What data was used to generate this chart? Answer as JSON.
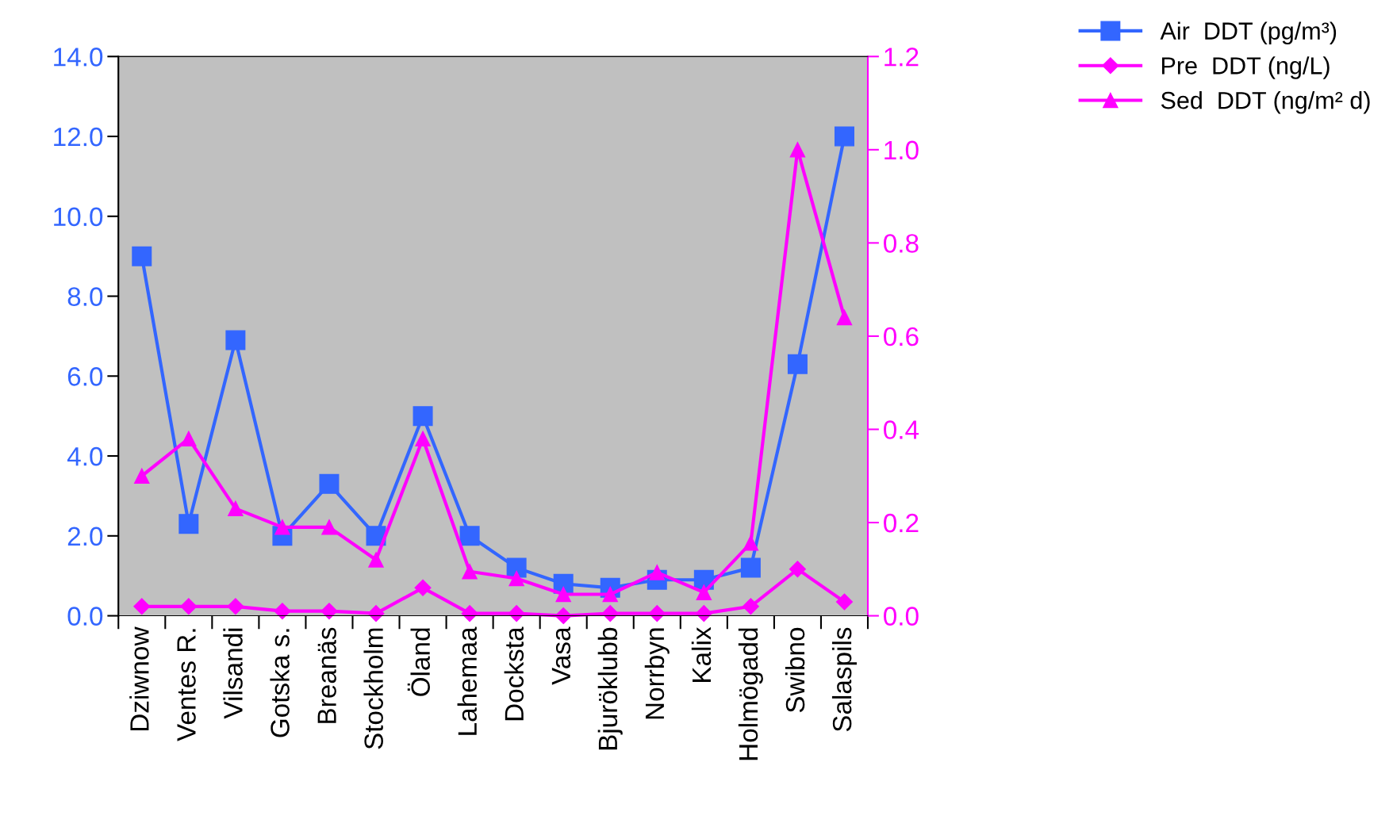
{
  "chart_data": {
    "type": "line",
    "categories": [
      "Dziwnow",
      "Ventes R.",
      "Vilsandi",
      "Gotska s.",
      "Breanäs",
      "Stockholm",
      "Öland",
      "Lahemaa",
      "Docksta",
      "Vasa",
      "Bjuröklubb",
      "Norrbyn",
      "Kalix",
      "Holmögadd",
      "Swibno",
      "Salaspils"
    ],
    "series": [
      {
        "name": "Air  DDT (pg/m³)",
        "color": "#3366ff",
        "marker": "square",
        "axis": "y",
        "values": [
          9.0,
          2.3,
          6.9,
          2.0,
          3.3,
          2.0,
          5.0,
          2.0,
          1.2,
          0.8,
          0.7,
          0.9,
          0.9,
          1.2,
          6.3,
          12.0
        ]
      },
      {
        "name": "Pre  DDT (ng/L)",
        "color": "#ff00ff",
        "marker": "diamond",
        "axis": "y2",
        "values": [
          0.02,
          0.02,
          0.02,
          0.01,
          0.01,
          0.005,
          0.06,
          0.005,
          0.005,
          0.0,
          0.005,
          0.005,
          0.005,
          0.02,
          0.1,
          0.03
        ]
      },
      {
        "name": "Sed  DDT (ng/m² d)",
        "color": "#ff00ff",
        "marker": "triangle",
        "axis": "y2",
        "values": [
          0.3,
          0.38,
          0.23,
          0.19,
          0.19,
          0.12,
          0.38,
          0.095,
          0.08,
          0.046,
          0.046,
          0.093,
          0.05,
          0.156,
          1.0,
          0.64
        ]
      }
    ],
    "ylim": [
      0,
      14
    ],
    "yticks": [
      {
        "value": 0,
        "label": "0.0"
      },
      {
        "value": 2,
        "label": "2.0"
      },
      {
        "value": 4,
        "label": "4.0"
      },
      {
        "value": 6,
        "label": "6.0"
      },
      {
        "value": 8,
        "label": "8.0"
      },
      {
        "value": 10,
        "label": "10.0"
      },
      {
        "value": 12,
        "label": "12.0"
      },
      {
        "value": 14,
        "label": "14.0"
      }
    ],
    "y2lim": [
      0,
      1.2
    ],
    "y2ticks": [
      {
        "value": 0,
        "label": "0.0"
      },
      {
        "value": 0.2,
        "label": "0.2"
      },
      {
        "value": 0.4,
        "label": "0.4"
      },
      {
        "value": 0.6,
        "label": "0.6"
      },
      {
        "value": 0.8,
        "label": "0.8"
      },
      {
        "value": 1.0,
        "label": "1.0"
      },
      {
        "value": 1.2,
        "label": "1.2"
      }
    ],
    "grid": false,
    "legend": "top right",
    "line_style": "solid"
  }
}
